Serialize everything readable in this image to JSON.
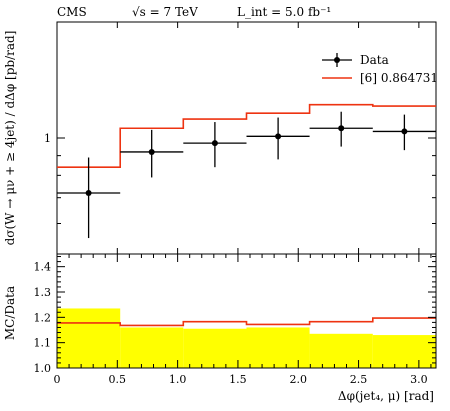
{
  "header": {
    "experiment": "CMS",
    "energy": "√s = 7 TeV",
    "lumi": "L_int = 5.0 fb⁻¹"
  },
  "chart_data": [
    {
      "type": "line",
      "role": "main",
      "ylabel": "dσ(W → μν + ≥ 4jet) / dΔφ [pb/rad]",
      "y_scale": "log",
      "ylim": [
        0.5,
        2.0
      ],
      "y_ticks": [
        1
      ],
      "y_tick_labels": [
        "1"
      ],
      "bin_edges": [
        0,
        0.524,
        1.047,
        1.571,
        2.094,
        2.618,
        3.142
      ],
      "legend_position": "top-right",
      "series": [
        {
          "name": "Data",
          "style": "points-with-errors",
          "color": "#000000",
          "x": [
            0.262,
            0.785,
            1.309,
            1.833,
            2.356,
            2.88
          ],
          "values": [
            0.72,
            0.92,
            0.97,
            1.01,
            1.06,
            1.04
          ],
          "err_low": [
            0.17,
            0.13,
            0.13,
            0.13,
            0.11,
            0.11
          ],
          "err_high": [
            0.17,
            0.13,
            0.13,
            0.12,
            0.11,
            0.11
          ]
        },
        {
          "name": "[6] 0.864731",
          "style": "histogram",
          "color": "#ee3311",
          "values": [
            0.84,
            1.06,
            1.12,
            1.16,
            1.22,
            1.21
          ]
        }
      ]
    },
    {
      "type": "area",
      "role": "ratio",
      "ylabel": "MC/Data",
      "xlabel": "Δφ(jet₄, μ) [rad]",
      "xlim": [
        0,
        3.142
      ],
      "ylim": [
        1.0,
        1.45
      ],
      "x_ticks": [
        0,
        0.5,
        1.0,
        1.5,
        2.0,
        2.5,
        3.0
      ],
      "x_tick_labels": [
        "0",
        "0.5",
        "1.0",
        "1.5",
        "2.0",
        "2.5",
        "3.0"
      ],
      "y_ticks": [
        1.0,
        1.1,
        1.2,
        1.3,
        1.4
      ],
      "y_tick_labels": [
        "1.0",
        "1.1",
        "1.2",
        "1.3",
        "1.4"
      ],
      "bin_edges": [
        0,
        0.524,
        1.047,
        1.571,
        2.094,
        2.618,
        3.142
      ],
      "band": {
        "color": "#ffff00",
        "upper": [
          1.235,
          1.16,
          1.155,
          1.16,
          1.135,
          1.13
        ]
      },
      "ratio_line": {
        "color": "#ee3311",
        "values": [
          1.178,
          1.168,
          1.183,
          1.172,
          1.183,
          1.197
        ]
      }
    }
  ]
}
